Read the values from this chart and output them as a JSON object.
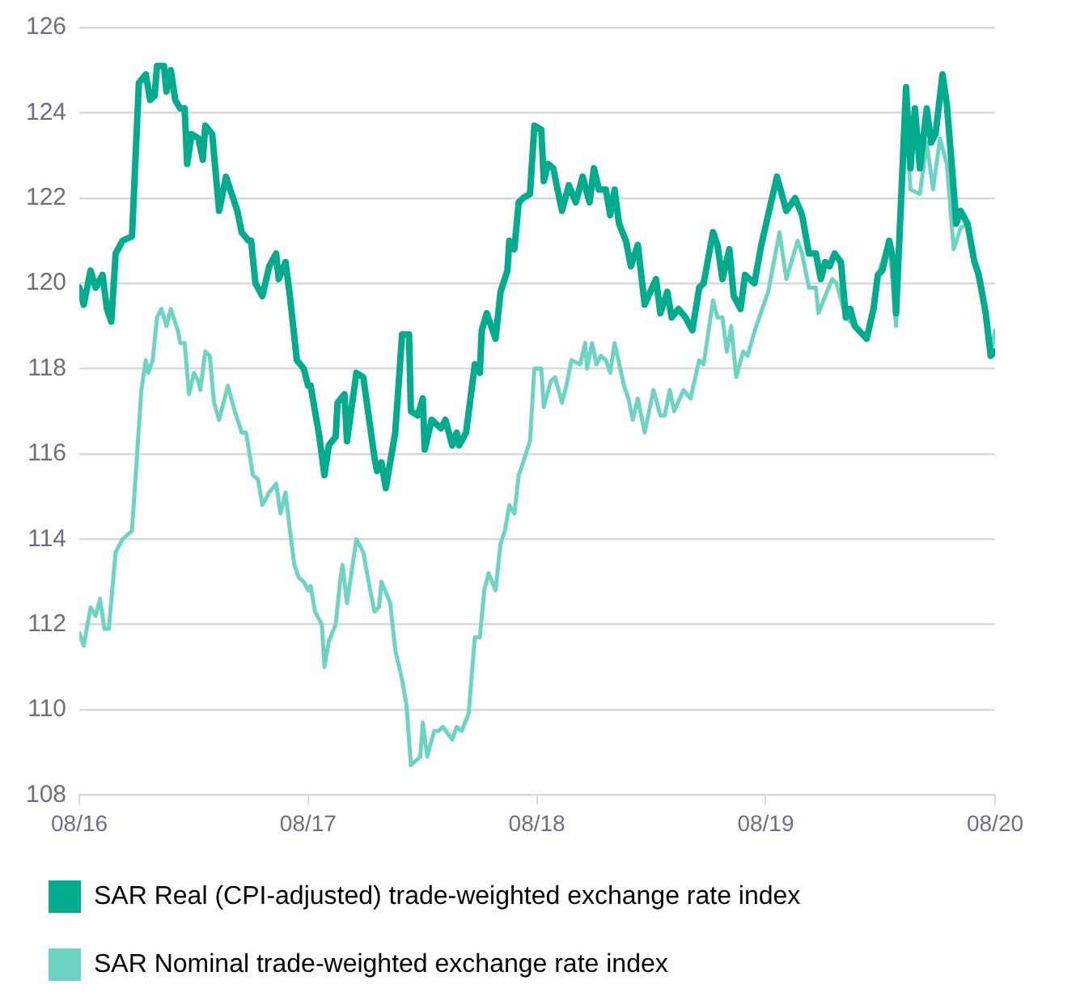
{
  "chart_data": {
    "type": "line",
    "xlim": [
      "2016-08-01",
      "2020-08-01"
    ],
    "xticks": [
      {
        "value": "2016-08",
        "label": "08/16"
      },
      {
        "value": "2017-08",
        "label": "08/17"
      },
      {
        "value": "2018-08",
        "label": "08/18"
      },
      {
        "value": "2019-08",
        "label": "08/19"
      },
      {
        "value": "2020-08",
        "label": "08/20"
      }
    ],
    "ylim": [
      108,
      126
    ],
    "yticks": [
      108,
      110,
      112,
      114,
      116,
      118,
      120,
      122,
      124,
      126
    ],
    "grid": "y",
    "legend": "bottom",
    "marker": "none",
    "line_style": "solid",
    "series": [
      {
        "name": "SAR Nominal trade-weighted exchange rate index",
        "color": "#6dd3c2",
        "x": [
          "2016-08-01",
          "2016-08-08",
          "2016-08-19",
          "2016-08-27",
          "2016-09-03",
          "2016-09-10",
          "2016-09-17",
          "2016-09-28",
          "2016-10-09",
          "2016-10-24",
          "2016-11-08",
          "2016-11-15",
          "2016-11-19",
          "2016-11-26",
          "2016-12-03",
          "2016-12-10",
          "2016-12-18",
          "2016-12-25",
          "2017-01-05",
          "2017-01-09",
          "2017-01-16",
          "2017-01-23",
          "2017-01-31",
          "2017-02-07",
          "2017-02-10",
          "2017-02-18",
          "2017-02-25",
          "2017-03-04",
          "2017-03-12",
          "2017-03-26",
          "2017-04-06",
          "2017-04-17",
          "2017-04-24",
          "2017-05-05",
          "2017-05-13",
          "2017-05-20",
          "2017-05-31",
          "2017-06-11",
          "2017-06-18",
          "2017-06-26",
          "2017-07-03",
          "2017-07-10",
          "2017-07-17",
          "2017-07-25",
          "2017-08-01",
          "2017-08-05",
          "2017-08-12",
          "2017-08-23",
          "2017-08-27",
          "2017-09-03",
          "2017-09-14",
          "2017-09-21",
          "2017-09-25",
          "2017-10-02",
          "2017-10-17",
          "2017-10-28",
          "2017-11-08",
          "2017-11-15",
          "2017-11-22",
          "2017-11-26",
          "2017-12-10",
          "2017-12-18",
          "2017-12-29",
          "2018-01-05",
          "2018-01-12",
          "2018-01-27",
          "2018-01-31",
          "2018-02-07",
          "2018-02-18",
          "2018-02-25",
          "2018-03-04",
          "2018-03-19",
          "2018-03-26",
          "2018-04-03",
          "2018-04-14",
          "2018-04-24",
          "2018-05-02",
          "2018-05-09",
          "2018-05-16",
          "2018-05-27",
          "2018-06-04",
          "2018-06-11",
          "2018-06-18",
          "2018-06-26",
          "2018-07-03",
          "2018-07-10",
          "2018-07-21",
          "2018-07-28",
          "2018-08-08",
          "2018-08-12",
          "2018-08-23",
          "2018-08-30",
          "2018-09-10",
          "2018-09-17",
          "2018-09-25",
          "2018-10-09",
          "2018-10-17",
          "2018-10-20",
          "2018-10-28",
          "2018-11-04",
          "2018-11-11",
          "2018-11-19",
          "2018-11-26",
          "2018-12-03",
          "2018-12-18",
          "2018-12-25",
          "2019-01-01",
          "2019-01-09",
          "2019-01-20",
          "2019-02-03",
          "2019-02-14",
          "2019-02-21",
          "2019-03-01",
          "2019-03-08",
          "2019-03-23",
          "2019-04-03",
          "2019-04-17",
          "2019-04-24",
          "2019-05-09",
          "2019-05-16",
          "2019-05-24",
          "2019-05-31",
          "2019-06-07",
          "2019-06-15",
          "2019-06-26",
          "2019-07-03",
          "2019-07-17",
          "2019-08-05",
          "2019-08-23",
          "2019-09-03",
          "2019-09-21",
          "2019-09-28",
          "2019-10-09",
          "2019-10-20",
          "2019-10-24",
          "2019-11-04",
          "2019-11-15",
          "2019-11-22",
          "2019-12-07",
          "2019-12-21",
          "2020-01-09",
          "2020-01-20",
          "2020-01-27",
          "2020-02-14",
          "2020-02-25",
          "2020-03-12",
          "2020-03-19",
          "2020-04-03",
          "2020-04-14",
          "2020-04-24",
          "2020-05-05",
          "2020-05-16",
          "2020-05-27",
          "2020-06-07",
          "2020-06-18",
          "2020-06-29",
          "2020-07-17",
          "2020-07-25",
          "2020-08-01"
        ],
        "values": [
          111.8,
          111.5,
          112.4,
          112.2,
          112.6,
          111.9,
          111.9,
          113.7,
          114.0,
          114.2,
          117.5,
          118.2,
          117.9,
          118.2,
          119.2,
          119.4,
          119.0,
          119.4,
          118.9,
          118.6,
          118.6,
          117.4,
          117.9,
          117.7,
          117.5,
          118.4,
          118.3,
          117.2,
          116.8,
          117.6,
          117.0,
          116.5,
          116.5,
          115.5,
          115.4,
          114.8,
          115.1,
          115.3,
          114.6,
          115.1,
          114.2,
          113.4,
          113.1,
          113.0,
          112.8,
          112.9,
          112.3,
          112.0,
          111.0,
          111.6,
          112.0,
          113.0,
          113.4,
          112.5,
          114.0,
          113.7,
          112.8,
          112.3,
          112.4,
          113.0,
          112.5,
          111.4,
          110.7,
          110.1,
          108.7,
          108.9,
          109.7,
          108.9,
          109.5,
          109.5,
          109.6,
          109.3,
          109.6,
          109.5,
          109.9,
          111.7,
          111.7,
          112.8,
          113.2,
          112.8,
          113.9,
          114.2,
          114.8,
          114.6,
          115.5,
          115.8,
          116.3,
          118.0,
          118.0,
          117.1,
          117.7,
          117.8,
          117.2,
          117.6,
          118.2,
          118.1,
          118.6,
          118.0,
          118.6,
          118.1,
          118.3,
          118.2,
          117.9,
          118.6,
          117.6,
          117.3,
          116.8,
          117.3,
          116.5,
          117.5,
          116.9,
          116.9,
          117.5,
          117.0,
          117.5,
          117.3,
          118.2,
          118.1,
          119.6,
          119.2,
          119.2,
          118.4,
          119.0,
          117.8,
          118.4,
          118.3,
          119.0,
          119.8,
          121.2,
          120.1,
          121.0,
          120.7,
          119.9,
          119.9,
          119.3,
          119.7,
          120.1,
          120.0,
          119.2,
          119.0,
          118.7,
          119.4,
          120.2,
          121.0,
          119.0,
          123.8,
          122.2,
          122.1,
          123.3,
          122.2,
          123.4,
          122.8,
          120.8,
          121.3,
          121.4,
          120.5,
          119.3,
          118.3,
          118.9
        ]
      },
      {
        "name": "SAR Real (CPI-adjusted) trade-weighted exchange rate index",
        "color": "#00ab8e",
        "x": [
          "2016-08-01",
          "2016-08-08",
          "2016-08-19",
          "2016-08-27",
          "2016-09-07",
          "2016-09-14",
          "2016-09-21",
          "2016-09-28",
          "2016-10-09",
          "2016-10-24",
          "2016-11-04",
          "2016-11-15",
          "2016-11-22",
          "2016-11-29",
          "2016-12-03",
          "2016-12-14",
          "2016-12-18",
          "2016-12-25",
          "2017-01-01",
          "2017-01-09",
          "2017-01-16",
          "2017-01-20",
          "2017-01-27",
          "2017-02-07",
          "2017-02-14",
          "2017-02-18",
          "2017-03-01",
          "2017-03-12",
          "2017-03-23",
          "2017-04-10",
          "2017-04-17",
          "2017-04-28",
          "2017-05-02",
          "2017-05-09",
          "2017-05-20",
          "2017-05-31",
          "2017-06-11",
          "2017-06-15",
          "2017-06-26",
          "2017-07-03",
          "2017-07-14",
          "2017-07-25",
          "2017-08-01",
          "2017-08-05",
          "2017-08-19",
          "2017-08-27",
          "2017-09-03",
          "2017-09-14",
          "2017-09-17",
          "2017-09-28",
          "2017-10-02",
          "2017-10-17",
          "2017-10-28",
          "2017-11-15",
          "2017-11-19",
          "2017-11-26",
          "2017-12-03",
          "2017-12-18",
          "2017-12-29",
          "2018-01-09",
          "2018-01-12",
          "2018-01-23",
          "2018-01-31",
          "2018-02-03",
          "2018-02-14",
          "2018-03-01",
          "2018-03-08",
          "2018-03-19",
          "2018-03-26",
          "2018-03-30",
          "2018-04-10",
          "2018-04-24",
          "2018-05-02",
          "2018-05-05",
          "2018-05-13",
          "2018-05-27",
          "2018-06-04",
          "2018-06-15",
          "2018-06-18",
          "2018-06-26",
          "2018-07-03",
          "2018-07-10",
          "2018-07-21",
          "2018-07-28",
          "2018-08-08",
          "2018-08-12",
          "2018-08-19",
          "2018-08-27",
          "2018-09-10",
          "2018-09-21",
          "2018-10-02",
          "2018-10-13",
          "2018-10-24",
          "2018-10-31",
          "2018-11-08",
          "2018-11-19",
          "2018-11-26",
          "2018-12-03",
          "2018-12-10",
          "2018-12-21",
          "2018-12-29",
          "2019-01-09",
          "2019-01-20",
          "2019-02-07",
          "2019-02-14",
          "2019-02-25",
          "2019-03-04",
          "2019-03-15",
          "2019-03-26",
          "2019-04-06",
          "2019-04-17",
          "2019-04-24",
          "2019-05-09",
          "2019-05-16",
          "2019-05-24",
          "2019-06-04",
          "2019-06-11",
          "2019-06-22",
          "2019-06-29",
          "2019-07-14",
          "2019-07-25",
          "2019-08-08",
          "2019-08-19",
          "2019-09-03",
          "2019-09-17",
          "2019-09-28",
          "2019-10-09",
          "2019-10-20",
          "2019-10-28",
          "2019-11-04",
          "2019-11-11",
          "2019-11-19",
          "2019-11-29",
          "2019-12-07",
          "2019-12-14",
          "2019-12-21",
          "2020-01-09",
          "2020-01-20",
          "2020-01-27",
          "2020-02-03",
          "2020-02-14",
          "2020-02-21",
          "2020-02-25",
          "2020-03-12",
          "2020-03-19",
          "2020-03-26",
          "2020-04-03",
          "2020-04-14",
          "2020-04-21",
          "2020-04-28",
          "2020-05-09",
          "2020-05-16",
          "2020-05-27",
          "2020-05-31",
          "2020-06-07",
          "2020-06-18",
          "2020-06-29",
          "2020-07-06",
          "2020-07-17",
          "2020-07-25",
          "2020-08-01"
        ],
        "values": [
          119.9,
          119.5,
          120.3,
          119.9,
          120.2,
          119.4,
          119.1,
          120.7,
          121.0,
          121.1,
          124.7,
          124.9,
          124.3,
          124.4,
          125.1,
          125.1,
          124.5,
          125.0,
          124.3,
          124.1,
          124.1,
          122.8,
          123.5,
          123.4,
          122.9,
          123.7,
          123.5,
          121.7,
          122.5,
          121.7,
          121.2,
          121.0,
          121.0,
          120.0,
          119.7,
          120.4,
          120.7,
          120.1,
          120.5,
          119.7,
          118.2,
          118.0,
          117.6,
          117.6,
          116.4,
          115.5,
          116.2,
          116.4,
          117.2,
          117.4,
          116.3,
          117.9,
          117.8,
          115.9,
          115.6,
          115.8,
          115.2,
          116.5,
          118.8,
          118.8,
          117.0,
          116.9,
          117.3,
          116.1,
          116.8,
          116.6,
          116.8,
          116.2,
          116.5,
          116.2,
          116.5,
          118.1,
          117.9,
          118.9,
          119.3,
          118.7,
          119.8,
          120.3,
          121.0,
          120.8,
          121.9,
          122.0,
          122.1,
          123.7,
          123.6,
          122.4,
          122.8,
          122.7,
          121.7,
          122.3,
          121.9,
          122.5,
          121.9,
          122.7,
          122.2,
          122.2,
          121.6,
          122.2,
          121.4,
          121.0,
          120.4,
          120.9,
          119.5,
          120.1,
          119.3,
          119.8,
          119.2,
          119.4,
          119.2,
          118.9,
          119.9,
          120.0,
          121.2,
          120.9,
          120.1,
          120.8,
          119.7,
          119.4,
          120.2,
          120.0,
          120.9,
          121.8,
          122.5,
          121.7,
          122.0,
          121.6,
          120.7,
          120.7,
          120.1,
          120.5,
          120.4,
          120.7,
          120.5,
          119.2,
          119.4,
          119.0,
          118.7,
          119.4,
          120.2,
          120.3,
          121.0,
          120.5,
          119.3,
          124.6,
          122.7,
          124.1,
          122.7,
          124.1,
          123.3,
          123.5,
          124.9,
          124.2,
          122.2,
          121.4,
          121.7,
          121.4,
          120.5,
          120.2,
          119.3,
          118.3,
          118.4
        ]
      }
    ]
  }
}
